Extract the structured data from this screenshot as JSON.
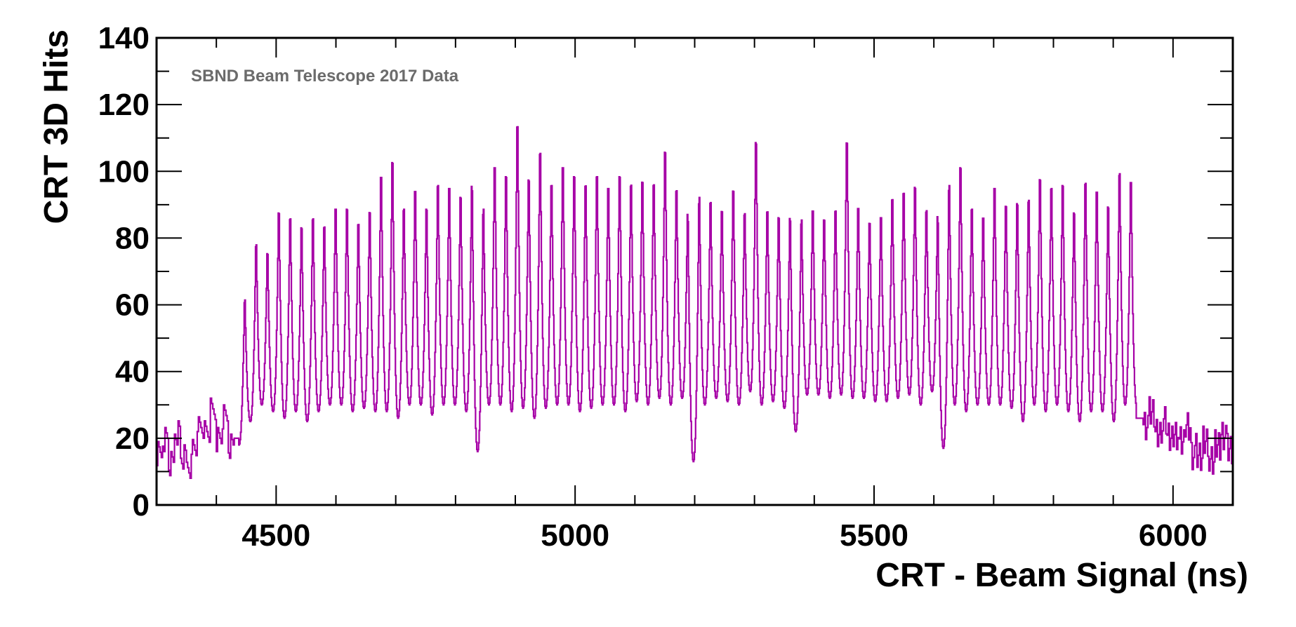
{
  "chart_data": {
    "type": "histogram",
    "title": "",
    "annotation": "SBND Beam Telescope 2017 Data",
    "xlabel": "CRT - Beam Signal (ns)",
    "ylabel": "CRT 3D Hits",
    "xlim": [
      4300,
      6100
    ],
    "ylim": [
      0,
      140
    ],
    "xticks": [
      4500,
      5000,
      5500,
      6000
    ],
    "xtick_labels": [
      "4500",
      "5000",
      "5500",
      "6000"
    ],
    "yticks": [
      0,
      20,
      40,
      60,
      80,
      100,
      120,
      140
    ],
    "ytick_labels": [
      "0",
      "20",
      "40",
      "60",
      "80",
      "100",
      "120",
      "140"
    ],
    "grid": false,
    "line_color": "#a600a6",
    "bunch_period_ns": 19,
    "bunch_peaks": {
      "x": [
        4447,
        4466,
        4485,
        4504,
        4523,
        4542,
        4561,
        4580,
        4599,
        4618,
        4637,
        4656,
        4675,
        4694,
        4713,
        4732,
        4751,
        4770,
        4789,
        4808,
        4827,
        4846,
        4865,
        4884,
        4903,
        4922,
        4941,
        4960,
        4979,
        4998,
        5017,
        5036,
        5055,
        5074,
        5093,
        5112,
        5131,
        5150,
        5169,
        5188,
        5207,
        5226,
        5245,
        5264,
        5283,
        5302,
        5321,
        5340,
        5359,
        5378,
        5397,
        5416,
        5435,
        5454,
        5473,
        5492,
        5511,
        5530,
        5549,
        5568,
        5587,
        5606,
        5625,
        5644,
        5663,
        5682,
        5701,
        5720,
        5739,
        5758,
        5777,
        5796,
        5815,
        5834,
        5853,
        5872,
        5891,
        5910,
        5929
      ],
      "peak": [
        66,
        84,
        81,
        95,
        93,
        90,
        93,
        90,
        96,
        96,
        91,
        95,
        107,
        112,
        96,
        102,
        96,
        104,
        103,
        100,
        104,
        96,
        110,
        107,
        124,
        106,
        115,
        104,
        110,
        107,
        104,
        107,
        103,
        107,
        104,
        105,
        104,
        115,
        102,
        94,
        100,
        98,
        95,
        102,
        94,
        118,
        95,
        93,
        93,
        92,
        95,
        92,
        95,
        118,
        96,
        91,
        93,
        99,
        101,
        103,
        95,
        93,
        104,
        110,
        96,
        93,
        103,
        97,
        98,
        99,
        106,
        103,
        104,
        95,
        105,
        102,
        97,
        108,
        105
      ],
      "trough": [
        18,
        25,
        30,
        28,
        26,
        28,
        25,
        28,
        30,
        30,
        28,
        29,
        28,
        28,
        26,
        30,
        30,
        27,
        30,
        30,
        28,
        16,
        30,
        30,
        28,
        29,
        26,
        29,
        30,
        30,
        28,
        29,
        30,
        30,
        28,
        31,
        30,
        32,
        30,
        32,
        13,
        30,
        32,
        31,
        30,
        34,
        30,
        31,
        29,
        22,
        33,
        33,
        32,
        33,
        32,
        32,
        31,
        31,
        32,
        33,
        30,
        34,
        17,
        30,
        28,
        30,
        30,
        30,
        29,
        25,
        30,
        28,
        30,
        28,
        25,
        28,
        28,
        25,
        30
      ]
    },
    "pre_beam_baseline": {
      "x": [
        4300,
        4310,
        4320,
        4330,
        4340,
        4350,
        4360,
        4370,
        4380,
        4390,
        4400,
        4410,
        4420
      ],
      "values": [
        15,
        20,
        12,
        22,
        14,
        12,
        18,
        24,
        22,
        28,
        20,
        26,
        18
      ]
    },
    "post_beam_baseline": {
      "x": [
        5950,
        5960,
        5970,
        5980,
        5990,
        6000,
        6010,
        6020,
        6030,
        6040,
        6050,
        6060,
        6070,
        6080,
        6090,
        6100
      ],
      "values": [
        25,
        27,
        22,
        24,
        20,
        22,
        18,
        24,
        16,
        14,
        20,
        12,
        18,
        22,
        16,
        20
      ]
    }
  }
}
